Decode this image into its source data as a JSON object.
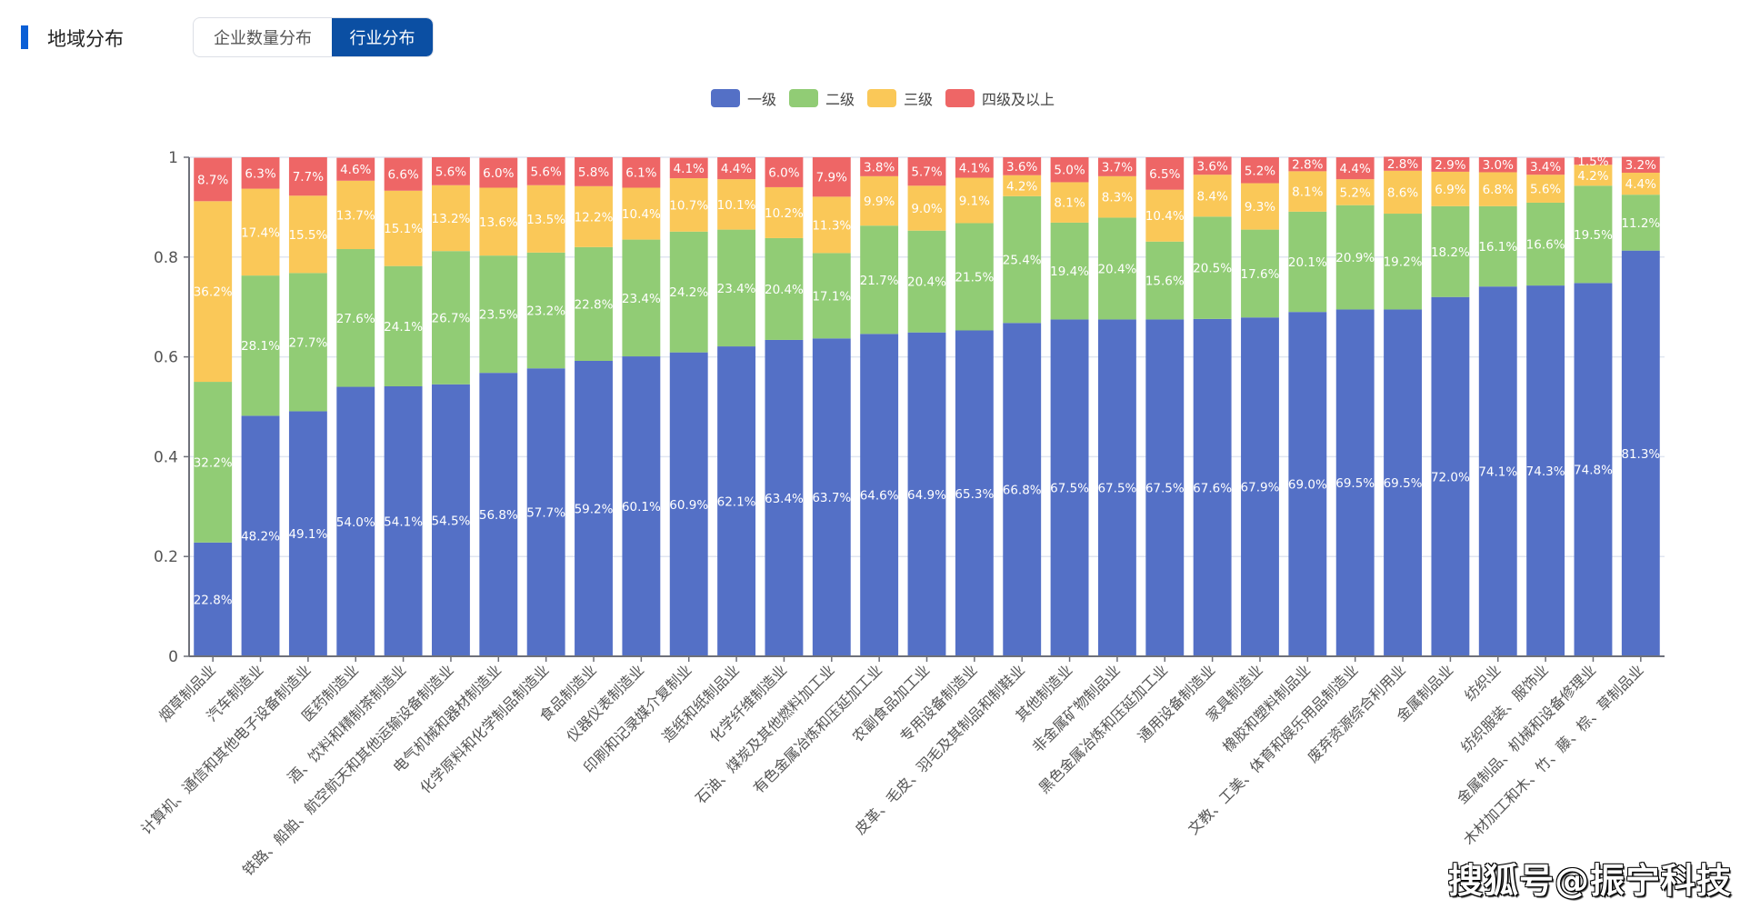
{
  "header": {
    "title": "地域分布",
    "tabs": [
      {
        "label": "企业数量分布",
        "active": false
      },
      {
        "label": "行业分布",
        "active": true
      }
    ]
  },
  "colors": {
    "accent": "#0a5fd6",
    "active_tab": "#0b4fa3",
    "series": [
      "#5470c6",
      "#91cc75",
      "#fac858",
      "#ee6666"
    ],
    "axis": "#6e7079",
    "grid": "#e0e6f1"
  },
  "watermark": "搜狐号@振宁科技",
  "chart_data": {
    "type": "bar",
    "stacked": true,
    "title": "",
    "xlabel": "",
    "ylabel": "",
    "ylim": [
      0,
      1
    ],
    "yticks": [
      "0",
      "0.2",
      "0.4",
      "0.6",
      "0.8",
      "1"
    ],
    "yticks_values": [
      0,
      0.2,
      0.4,
      0.6,
      0.8,
      1
    ],
    "grid": true,
    "legend_position": "top-center",
    "categories": [
      "烟草制品业",
      "汽车制造业",
      "计算机、通信和其他电子设备制造业",
      "医药制造业",
      "酒、饮料和精制茶制造业",
      "铁路、船舶、航空航天和其他运输设备制造业",
      "电气机械和器材制造业",
      "化学原料和化学制品制造业",
      "食品制造业",
      "仪器仪表制造业",
      "印刷和记录媒介复制业",
      "造纸和纸制品业",
      "化学纤维制造业",
      "石油、煤炭及其他燃料加工业",
      "有色金属冶炼和压延加工业",
      "农副食品加工业",
      "专用设备制造业",
      "皮革、毛皮、羽毛及其制品和制鞋业",
      "其他制造业",
      "非金属矿物制品业",
      "黑色金属冶炼和压延加工业",
      "通用设备制造业",
      "家具制造业",
      "橡胶和塑料制品业",
      "文教、工美、体育和娱乐用品制造业",
      "废弃资源综合利用业",
      "金属制品业",
      "纺织业",
      "纺织服装、服饰业",
      "金属制品、机械和设备修理业",
      "木材加工和木、竹、藤、棕、草制品业"
    ],
    "series": [
      {
        "name": "一级",
        "values": [
          22.8,
          48.2,
          49.1,
          54.0,
          54.1,
          54.5,
          56.8,
          57.7,
          59.2,
          60.1,
          60.9,
          62.1,
          63.4,
          63.7,
          64.6,
          64.9,
          65.3,
          66.8,
          67.5,
          67.5,
          67.5,
          67.6,
          67.9,
          69.0,
          69.5,
          69.5,
          72.0,
          74.1,
          74.3,
          74.8,
          81.3
        ]
      },
      {
        "name": "二级",
        "values": [
          32.2,
          28.1,
          27.7,
          27.6,
          24.1,
          26.7,
          23.5,
          23.2,
          22.8,
          23.4,
          24.2,
          23.4,
          20.4,
          17.1,
          21.7,
          20.4,
          21.5,
          25.4,
          19.4,
          20.4,
          15.6,
          20.5,
          17.6,
          20.1,
          20.9,
          19.2,
          18.2,
          16.1,
          16.6,
          19.5,
          11.2
        ]
      },
      {
        "name": "三级",
        "values": [
          36.2,
          17.4,
          15.5,
          13.7,
          15.1,
          13.2,
          13.6,
          13.5,
          12.2,
          10.4,
          10.7,
          10.1,
          10.2,
          11.3,
          9.9,
          9.0,
          9.1,
          4.2,
          8.1,
          8.3,
          10.4,
          8.4,
          9.3,
          8.1,
          5.2,
          8.6,
          6.9,
          6.8,
          5.6,
          4.2,
          4.4
        ]
      },
      {
        "name": "四级及以上",
        "values": [
          8.7,
          6.3,
          7.7,
          4.6,
          6.6,
          5.6,
          6.0,
          5.6,
          5.8,
          6.1,
          4.1,
          4.4,
          6.0,
          7.9,
          3.8,
          5.7,
          4.1,
          3.6,
          5.0,
          3.7,
          6.5,
          3.6,
          5.2,
          2.8,
          4.4,
          2.8,
          2.9,
          3.0,
          3.4,
          1.5,
          3.2
        ]
      }
    ],
    "value_unit": "%"
  }
}
